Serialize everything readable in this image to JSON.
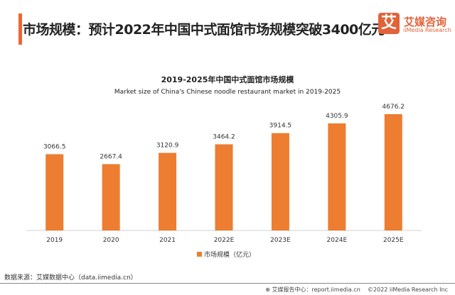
{
  "header": {
    "title": "市场规模：预计2022年中国中式面馆市场规模突破3400亿元",
    "logo_mark": "艾",
    "logo_cn": "艾媒咨询",
    "logo_en": "iiMedia Research"
  },
  "chart_data": {
    "type": "bar",
    "title": "2019-2025年中国中式面馆市场规模",
    "subtitle": "Market size of China's Chinese noodle restaurant market in 2019-2025",
    "categories": [
      "2019",
      "2020",
      "2021",
      "2022E",
      "2023E",
      "2024E",
      "2025E"
    ],
    "series": [
      {
        "name": "市场规模（亿元）",
        "values": [
          3066.5,
          2667.4,
          3120.9,
          3464.2,
          3914.5,
          4305.9,
          4676.2
        ],
        "color": "#ed7d31"
      }
    ],
    "ylim": [
      0,
      4676.2
    ],
    "grid": false,
    "legend": "bottom"
  },
  "footer": {
    "source": "数据来源：艾媒数据中心（data.iimedia.cn）",
    "report": "艾媒报告中心：report.iimedia.cn",
    "copyright": "©2022 iiMedia Research Inc"
  }
}
